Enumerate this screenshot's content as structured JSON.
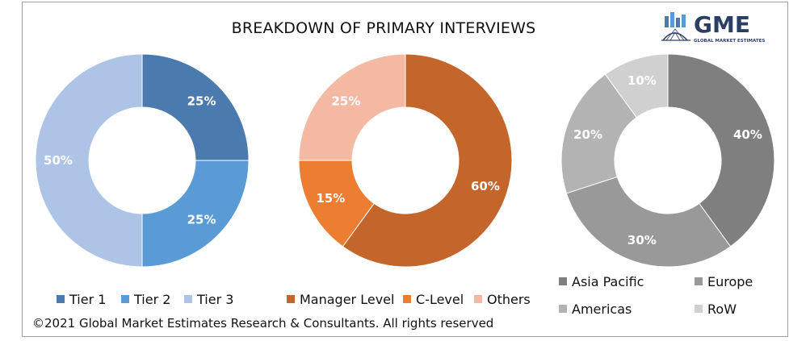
{
  "title": "BREAKDOWN OF PRIMARY INTERVIEWS",
  "logo": {
    "text": "GME",
    "subtext": "GLOBAL MARKET ESTIMATES"
  },
  "footer": "©2021 Global Market Estimates Research & Consultants. All rights reserved",
  "chart_data": [
    {
      "type": "pie",
      "categories": [
        "Tier 1",
        "Tier 2",
        "Tier 3"
      ],
      "values": [
        25,
        25,
        50
      ],
      "labels": [
        "25%",
        "25%",
        "50%"
      ],
      "colors": [
        "#4a7aae",
        "#5b9bd5",
        "#adc4e6"
      ],
      "legend": "bottom"
    },
    {
      "type": "pie",
      "categories": [
        "Manager Level",
        "C-Level",
        "Others"
      ],
      "values": [
        60,
        15,
        25
      ],
      "labels": [
        "60%",
        "15%",
        "25%"
      ],
      "colors": [
        "#c4652b",
        "#ed7d31",
        "#f4b9a2"
      ],
      "legend": "bottom"
    },
    {
      "type": "pie",
      "categories": [
        "Asia Pacific",
        "Europe",
        "Americas",
        "RoW"
      ],
      "values": [
        40,
        30,
        20,
        10
      ],
      "labels": [
        "40%",
        "30%",
        "20%",
        "10%"
      ],
      "colors": [
        "#7f7f7f",
        "#999999",
        "#b3b3b3",
        "#d0d0d0"
      ],
      "legend": "bottom"
    }
  ]
}
